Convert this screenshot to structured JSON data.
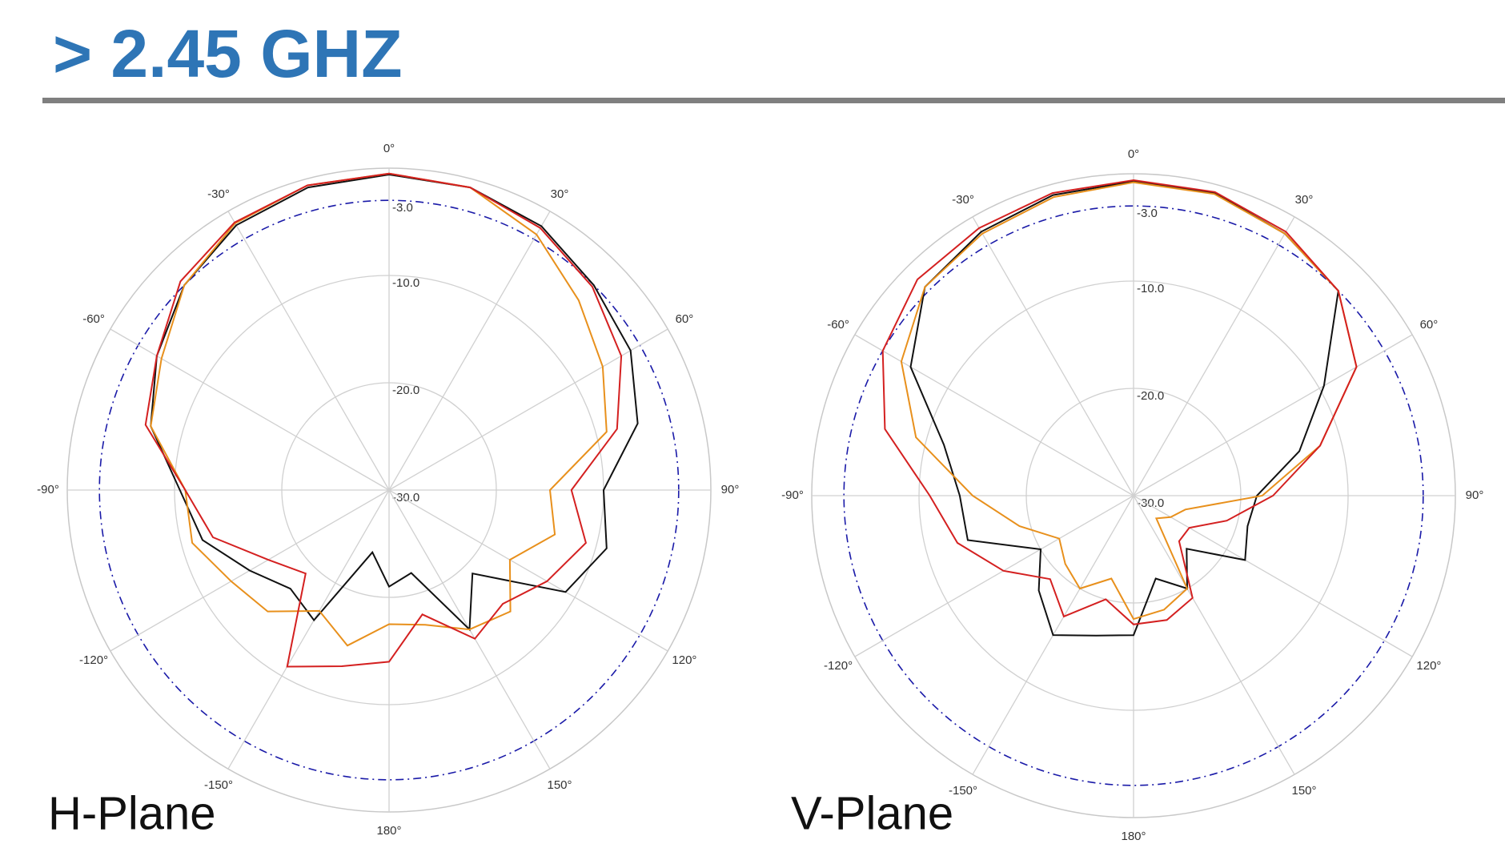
{
  "title": "> 2.45 GHZ",
  "chart_data": [
    {
      "type": "polar",
      "title": "H-Plane",
      "x": [
        -165,
        -150,
        -135,
        -120,
        -105,
        -90,
        -75,
        -60,
        -45,
        -30,
        -15,
        0,
        15,
        30,
        45,
        60,
        75,
        90,
        105,
        120,
        135,
        150,
        165,
        180
      ],
      "series": [
        {
          "color": "#111111",
          "values": [
            -24,
            -16,
            -17,
            -15,
            -12,
            -10.5,
            -7,
            -5,
            -3,
            -1.5,
            -0.8,
            -0.6,
            -0.8,
            -1.6,
            -3,
            -4,
            -6,
            -10,
            -9,
            -11,
            -19,
            -15,
            -22,
            -21
          ]
        },
        {
          "color": "#e8901c",
          "values": [
            -15,
            -17,
            -14,
            -13,
            -11,
            -11,
            -7,
            -5.5,
            -3,
            -1.3,
            -0.6,
            -0.5,
            -0.8,
            -2.5,
            -5,
            -7,
            -9,
            -15,
            -14,
            -17,
            -14,
            -15,
            -17,
            -17.5
          ]
        },
        {
          "color": "#d42020",
          "values": [
            -13,
            -11,
            -19,
            -17,
            -13,
            -11,
            -6.5,
            -5,
            -2.5,
            -1.2,
            -0.6,
            -0.5,
            -0.8,
            -1.8,
            -3.2,
            -5,
            -8,
            -13,
            -11,
            -13,
            -15,
            -14,
            -18,
            -14
          ]
        }
      ],
      "ylim": [
        -30,
        0
      ],
      "yticks": [
        {
          "value": -30,
          "label": "-30.0"
        },
        {
          "value": -20,
          "label": "-20.0"
        },
        {
          "value": -10,
          "label": "-10.0"
        },
        {
          "value": -3,
          "label": "-3.0"
        }
      ],
      "reference_level": -3,
      "xticks": [
        {
          "value": 0,
          "label": "0°"
        },
        {
          "value": 30,
          "label": "30°"
        },
        {
          "value": 60,
          "label": "60°"
        },
        {
          "value": 90,
          "label": "90°"
        },
        {
          "value": 120,
          "label": "120°"
        },
        {
          "value": 150,
          "label": "150°"
        },
        {
          "value": 180,
          "label": "180°"
        },
        {
          "value": -150,
          "label": "-150°"
        },
        {
          "value": -120,
          "label": "-120°"
        },
        {
          "value": -90,
          "label": "-90°"
        },
        {
          "value": -60,
          "label": "-60°"
        },
        {
          "value": -30,
          "label": "-30°"
        }
      ]
    },
    {
      "type": "polar",
      "title": "V-Plane",
      "x": [
        -165,
        -150,
        -135,
        -120,
        -105,
        -90,
        -75,
        -60,
        -45,
        -30,
        -15,
        0,
        15,
        30,
        45,
        60,
        75,
        90,
        105,
        120,
        135,
        150,
        165,
        180
      ],
      "series": [
        {
          "color": "#111111",
          "values": [
            -16.5,
            -15,
            -17.5,
            -20,
            -14,
            -13.8,
            -11.7,
            -6,
            -2.5,
            -1.6,
            -1,
            -0.7,
            -0.8,
            -1.8,
            -3,
            -9.5,
            -14,
            -18.5,
            -19,
            -18,
            -23,
            -20,
            -22,
            -17
          ]
        },
        {
          "color": "#e8901c",
          "values": [
            -22,
            -20,
            -21,
            -22,
            -19,
            -15,
            -9,
            -5,
            -2.5,
            -1.8,
            -1.2,
            -0.8,
            -0.9,
            -1.8,
            -3,
            -6,
            -12,
            -18,
            -25,
            -26,
            -27,
            -20,
            -19,
            -18.5
          ]
        },
        {
          "color": "#d42020",
          "values": [
            -20,
            -17,
            -19,
            -16,
            -13,
            -11,
            -6,
            -3,
            -1.5,
            -1.2,
            -0.8,
            -0.6,
            -0.7,
            -1.6,
            -3,
            -6,
            -12,
            -17,
            -21,
            -24,
            -24,
            -19,
            -18,
            -18
          ]
        }
      ],
      "ylim": [
        -30,
        0
      ],
      "yticks": [
        {
          "value": -30,
          "label": "-30.0"
        },
        {
          "value": -20,
          "label": "-20.0"
        },
        {
          "value": -10,
          "label": "-10.0"
        },
        {
          "value": -3,
          "label": "-3.0"
        }
      ],
      "reference_level": -3,
      "xticks": [
        {
          "value": 0,
          "label": "0°"
        },
        {
          "value": 30,
          "label": "30°"
        },
        {
          "value": 60,
          "label": "60°"
        },
        {
          "value": 90,
          "label": "90°"
        },
        {
          "value": 120,
          "label": "120°"
        },
        {
          "value": 150,
          "label": "150°"
        },
        {
          "value": 180,
          "label": "180°"
        },
        {
          "value": -150,
          "label": "-150°"
        },
        {
          "value": -120,
          "label": "-120°"
        },
        {
          "value": -90,
          "label": "-90°"
        },
        {
          "value": -60,
          "label": "-60°"
        },
        {
          "value": -30,
          "label": "-30°"
        }
      ]
    }
  ]
}
